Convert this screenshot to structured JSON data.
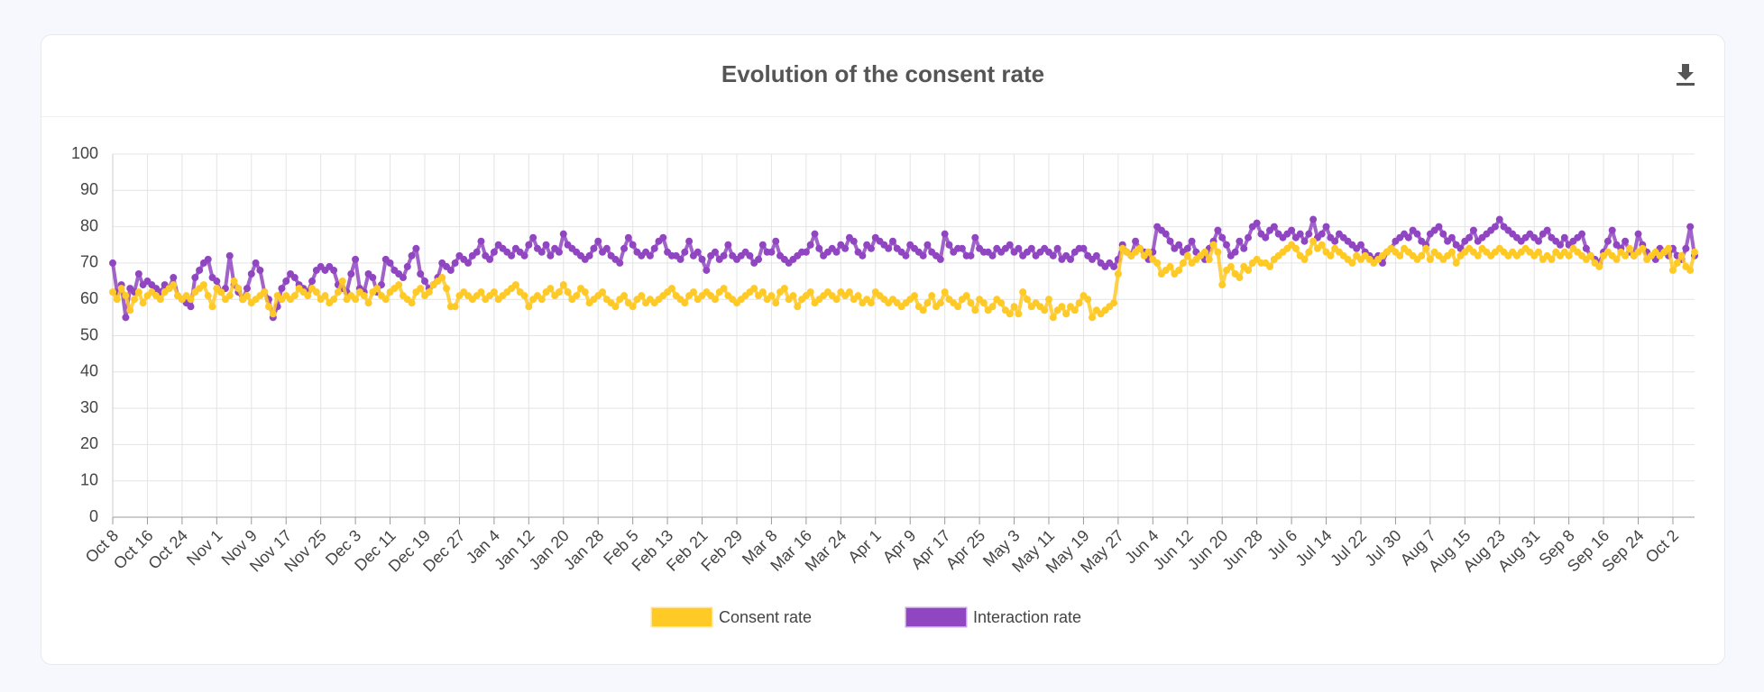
{
  "chart_data": {
    "type": "line",
    "title": "Evolution of the consent rate",
    "categories": [
      "Oct 8",
      null,
      null,
      null,
      null,
      null,
      null,
      null,
      "Oct 16",
      null,
      null,
      null,
      null,
      null,
      null,
      null,
      "Oct 24",
      null,
      null,
      null,
      null,
      null,
      null,
      null,
      "Nov 1",
      null,
      null,
      null,
      null,
      null,
      null,
      null,
      "Nov 9",
      null,
      null,
      null,
      null,
      null,
      null,
      null,
      "Nov 17",
      null,
      null,
      null,
      null,
      null,
      null,
      null,
      "Nov 25",
      null,
      null,
      null,
      null,
      null,
      null,
      null,
      "Dec 3",
      null,
      null,
      null,
      null,
      null,
      null,
      null,
      "Dec 11",
      null,
      null,
      null,
      null,
      null,
      null,
      null,
      "Dec 19",
      null,
      null,
      null,
      null,
      null,
      null,
      null,
      "Dec 27",
      null,
      null,
      null,
      null,
      null,
      null,
      null,
      "Jan 4",
      null,
      null,
      null,
      null,
      null,
      null,
      null,
      "Jan 12",
      null,
      null,
      null,
      null,
      null,
      null,
      null,
      "Jan 20",
      null,
      null,
      null,
      null,
      null,
      null,
      null,
      "Jan 28",
      null,
      null,
      null,
      null,
      null,
      null,
      null,
      "Feb 5",
      null,
      null,
      null,
      null,
      null,
      null,
      null,
      "Feb 13",
      null,
      null,
      null,
      null,
      null,
      null,
      null,
      "Feb 21",
      null,
      null,
      null,
      null,
      null,
      null,
      null,
      "Feb 29",
      null,
      null,
      null,
      null,
      null,
      null,
      null,
      "Mar 8",
      null,
      null,
      null,
      null,
      null,
      null,
      null,
      "Mar 16",
      null,
      null,
      null,
      null,
      null,
      null,
      null,
      "Mar 24",
      null,
      null,
      null,
      null,
      null,
      null,
      null,
      "Apr 1",
      null,
      null,
      null,
      null,
      null,
      null,
      null,
      "Apr 9",
      null,
      null,
      null,
      null,
      null,
      null,
      null,
      "Apr 17",
      null,
      null,
      null,
      null,
      null,
      null,
      null,
      "Apr 25",
      null,
      null,
      null,
      null,
      null,
      null,
      null,
      "May 3",
      null,
      null,
      null,
      null,
      null,
      null,
      null,
      "May 11",
      null,
      null,
      null,
      null,
      null,
      null,
      null,
      "May 19",
      null,
      null,
      null,
      null,
      null,
      null,
      null,
      "May 27",
      null,
      null,
      null,
      null,
      null,
      null,
      null,
      "Jun 4",
      null,
      null,
      null,
      null,
      null,
      null,
      null,
      "Jun 12",
      null,
      null,
      null,
      null,
      null,
      null,
      null,
      "Jun 20",
      null,
      null,
      null,
      null,
      null,
      null,
      null,
      "Jun 28",
      null,
      null,
      null,
      null,
      null,
      null,
      null,
      "Jul 6",
      null,
      null,
      null,
      null,
      null,
      null,
      null,
      "Jul 14",
      null,
      null,
      null,
      null,
      null,
      null,
      null,
      "Jul 22",
      null,
      null,
      null,
      null,
      null,
      null,
      null,
      "Jul 30",
      null,
      null,
      null,
      null,
      null,
      null,
      null,
      "Aug 7",
      null,
      null,
      null,
      null,
      null,
      null,
      null,
      "Aug 15",
      null,
      null,
      null,
      null,
      null,
      null,
      null,
      "Aug 23",
      null,
      null,
      null,
      null,
      null,
      null,
      null,
      "Aug 31",
      null,
      null,
      null,
      null,
      null,
      null,
      null,
      "Sep 8",
      null,
      null,
      null,
      null,
      null,
      null,
      null,
      "Sep 16",
      null,
      null,
      null,
      null,
      null,
      null,
      null,
      "Sep 24",
      null,
      null,
      null,
      null,
      null,
      null,
      null,
      "Oct 2",
      null,
      null,
      null,
      null,
      null
    ],
    "series": [
      {
        "name": "Consent rate",
        "color": "#ffc926",
        "values": [
          62,
          60,
          63,
          61,
          57,
          60,
          62,
          59,
          61,
          62,
          61,
          60,
          62,
          63,
          64,
          61,
          60,
          61,
          60,
          62,
          63,
          64,
          61,
          58,
          63,
          62,
          60,
          61,
          65,
          63,
          60,
          61,
          59,
          60,
          61,
          62,
          58,
          56,
          61,
          60,
          61,
          60,
          61,
          63,
          62,
          61,
          63,
          62,
          60,
          61,
          59,
          60,
          62,
          65,
          60,
          61,
          60,
          62,
          61,
          59,
          62,
          63,
          61,
          60,
          62,
          63,
          64,
          61,
          60,
          59,
          62,
          63,
          61,
          62,
          64,
          65,
          66,
          63,
          58,
          58,
          61,
          62,
          61,
          60,
          61,
          62,
          60,
          61,
          62,
          60,
          61,
          62,
          63,
          64,
          62,
          61,
          58,
          60,
          61,
          60,
          62,
          63,
          61,
          62,
          64,
          62,
          60,
          61,
          63,
          62,
          59,
          60,
          61,
          62,
          60,
          59,
          58,
          60,
          61,
          59,
          58,
          60,
          61,
          59,
          60,
          59,
          60,
          61,
          62,
          63,
          61,
          60,
          59,
          61,
          62,
          60,
          61,
          62,
          61,
          60,
          62,
          63,
          61,
          60,
          59,
          60,
          61,
          62,
          63,
          61,
          62,
          60,
          61,
          59,
          62,
          63,
          60,
          61,
          58,
          60,
          61,
          62,
          59,
          60,
          61,
          62,
          61,
          60,
          62,
          61,
          62,
          60,
          61,
          59,
          60,
          59,
          62,
          61,
          60,
          59,
          60,
          59,
          58,
          59,
          60,
          61,
          58,
          57,
          59,
          61,
          58,
          59,
          62,
          60,
          59,
          58,
          60,
          61,
          59,
          57,
          60,
          59,
          57,
          58,
          60,
          59,
          57,
          56,
          58,
          56,
          62,
          60,
          58,
          59,
          58,
          57,
          60,
          55,
          57,
          58,
          56,
          58,
          57,
          59,
          61,
          60,
          55,
          57,
          56,
          57,
          58,
          59,
          67,
          74,
          73,
          72,
          73,
          74,
          72,
          73,
          71,
          70,
          67,
          68,
          69,
          67,
          68,
          70,
          72,
          70,
          71,
          72,
          73,
          71,
          75,
          73,
          64,
          68,
          69,
          67,
          66,
          69,
          68,
          70,
          71,
          70,
          70,
          69,
          71,
          72,
          73,
          74,
          75,
          74,
          72,
          71,
          73,
          76,
          74,
          75,
          73,
          72,
          74,
          73,
          72,
          71,
          70,
          72,
          71,
          72,
          71,
          70,
          71,
          72,
          73,
          74,
          73,
          72,
          74,
          73,
          72,
          71,
          72,
          74,
          71,
          73,
          72,
          71,
          72,
          73,
          70,
          72,
          73,
          74,
          73,
          72,
          74,
          73,
          72,
          73,
          74,
          73,
          72,
          73,
          72,
          73,
          74,
          73,
          72,
          73,
          71,
          72,
          71,
          73,
          72,
          73,
          72,
          74,
          73,
          72,
          71,
          72,
          70,
          69,
          72,
          73,
          72,
          71,
          73,
          72,
          74,
          72,
          73,
          74,
          71,
          72,
          73,
          72,
          73,
          74,
          68,
          70,
          72,
          69,
          68,
          73
        ]
      },
      {
        "name": "Interaction rate",
        "color": "#9146c1",
        "values": [
          70,
          62,
          64,
          55,
          63,
          62,
          67,
          64,
          65,
          64,
          63,
          62,
          64,
          63,
          66,
          61,
          60,
          59,
          58,
          66,
          68,
          70,
          71,
          66,
          65,
          62,
          63,
          72,
          64,
          62,
          60,
          63,
          67,
          70,
          68,
          62,
          60,
          55,
          58,
          63,
          65,
          67,
          66,
          64,
          63,
          62,
          65,
          68,
          69,
          68,
          69,
          68,
          64,
          63,
          62,
          67,
          71,
          63,
          62,
          67,
          66,
          62,
          64,
          71,
          70,
          68,
          67,
          66,
          69,
          72,
          74,
          67,
          65,
          63,
          64,
          66,
          70,
          69,
          68,
          70,
          72,
          71,
          70,
          72,
          73,
          76,
          72,
          71,
          73,
          75,
          74,
          73,
          72,
          74,
          73,
          72,
          75,
          77,
          74,
          73,
          75,
          72,
          74,
          73,
          78,
          75,
          74,
          73,
          72,
          71,
          72,
          74,
          76,
          73,
          74,
          72,
          71,
          70,
          74,
          77,
          75,
          73,
          72,
          73,
          72,
          74,
          76,
          77,
          73,
          72,
          72,
          71,
          73,
          76,
          72,
          73,
          71,
          68,
          72,
          73,
          71,
          72,
          75,
          72,
          71,
          72,
          73,
          72,
          70,
          71,
          75,
          73,
          73,
          76,
          72,
          71,
          70,
          71,
          72,
          73,
          73,
          75,
          78,
          74,
          72,
          73,
          74,
          73,
          75,
          74,
          77,
          76,
          73,
          72,
          75,
          74,
          77,
          76,
          75,
          74,
          76,
          74,
          73,
          72,
          75,
          74,
          73,
          72,
          75,
          73,
          72,
          71,
          78,
          75,
          73,
          74,
          74,
          72,
          72,
          77,
          74,
          73,
          73,
          72,
          74,
          73,
          74,
          75,
          73,
          74,
          72,
          73,
          74,
          72,
          73,
          74,
          73,
          72,
          74,
          71,
          72,
          71,
          73,
          74,
          74,
          72,
          71,
          72,
          70,
          69,
          70,
          69,
          71,
          75,
          73,
          72,
          76,
          74,
          73,
          71,
          73,
          80,
          79,
          78,
          76,
          74,
          75,
          73,
          74,
          76,
          73,
          72,
          71,
          74,
          76,
          79,
          77,
          75,
          72,
          73,
          76,
          74,
          77,
          80,
          81,
          78,
          77,
          79,
          80,
          78,
          77,
          78,
          79,
          77,
          78,
          76,
          78,
          82,
          77,
          78,
          80,
          77,
          76,
          78,
          77,
          76,
          75,
          74,
          75,
          73,
          72,
          71,
          72,
          70,
          73,
          74,
          76,
          77,
          78,
          77,
          79,
          78,
          76,
          75,
          78,
          79,
          80,
          78,
          76,
          77,
          75,
          74,
          76,
          77,
          79,
          76,
          77,
          78,
          79,
          80,
          82,
          80,
          79,
          78,
          77,
          76,
          77,
          78,
          77,
          76,
          78,
          79,
          77,
          76,
          75,
          77,
          75,
          76,
          77,
          78,
          74,
          72,
          71,
          70,
          73,
          76,
          79,
          75,
          74,
          76,
          73,
          72,
          78,
          75,
          73,
          72,
          71,
          74,
          73,
          72,
          74,
          72,
          71,
          74,
          80,
          72
        ]
      }
    ],
    "ylim": [
      0,
      100
    ],
    "yticks": [
      0,
      10,
      20,
      30,
      40,
      50,
      60,
      70,
      80,
      90,
      100
    ],
    "grid": true
  }
}
